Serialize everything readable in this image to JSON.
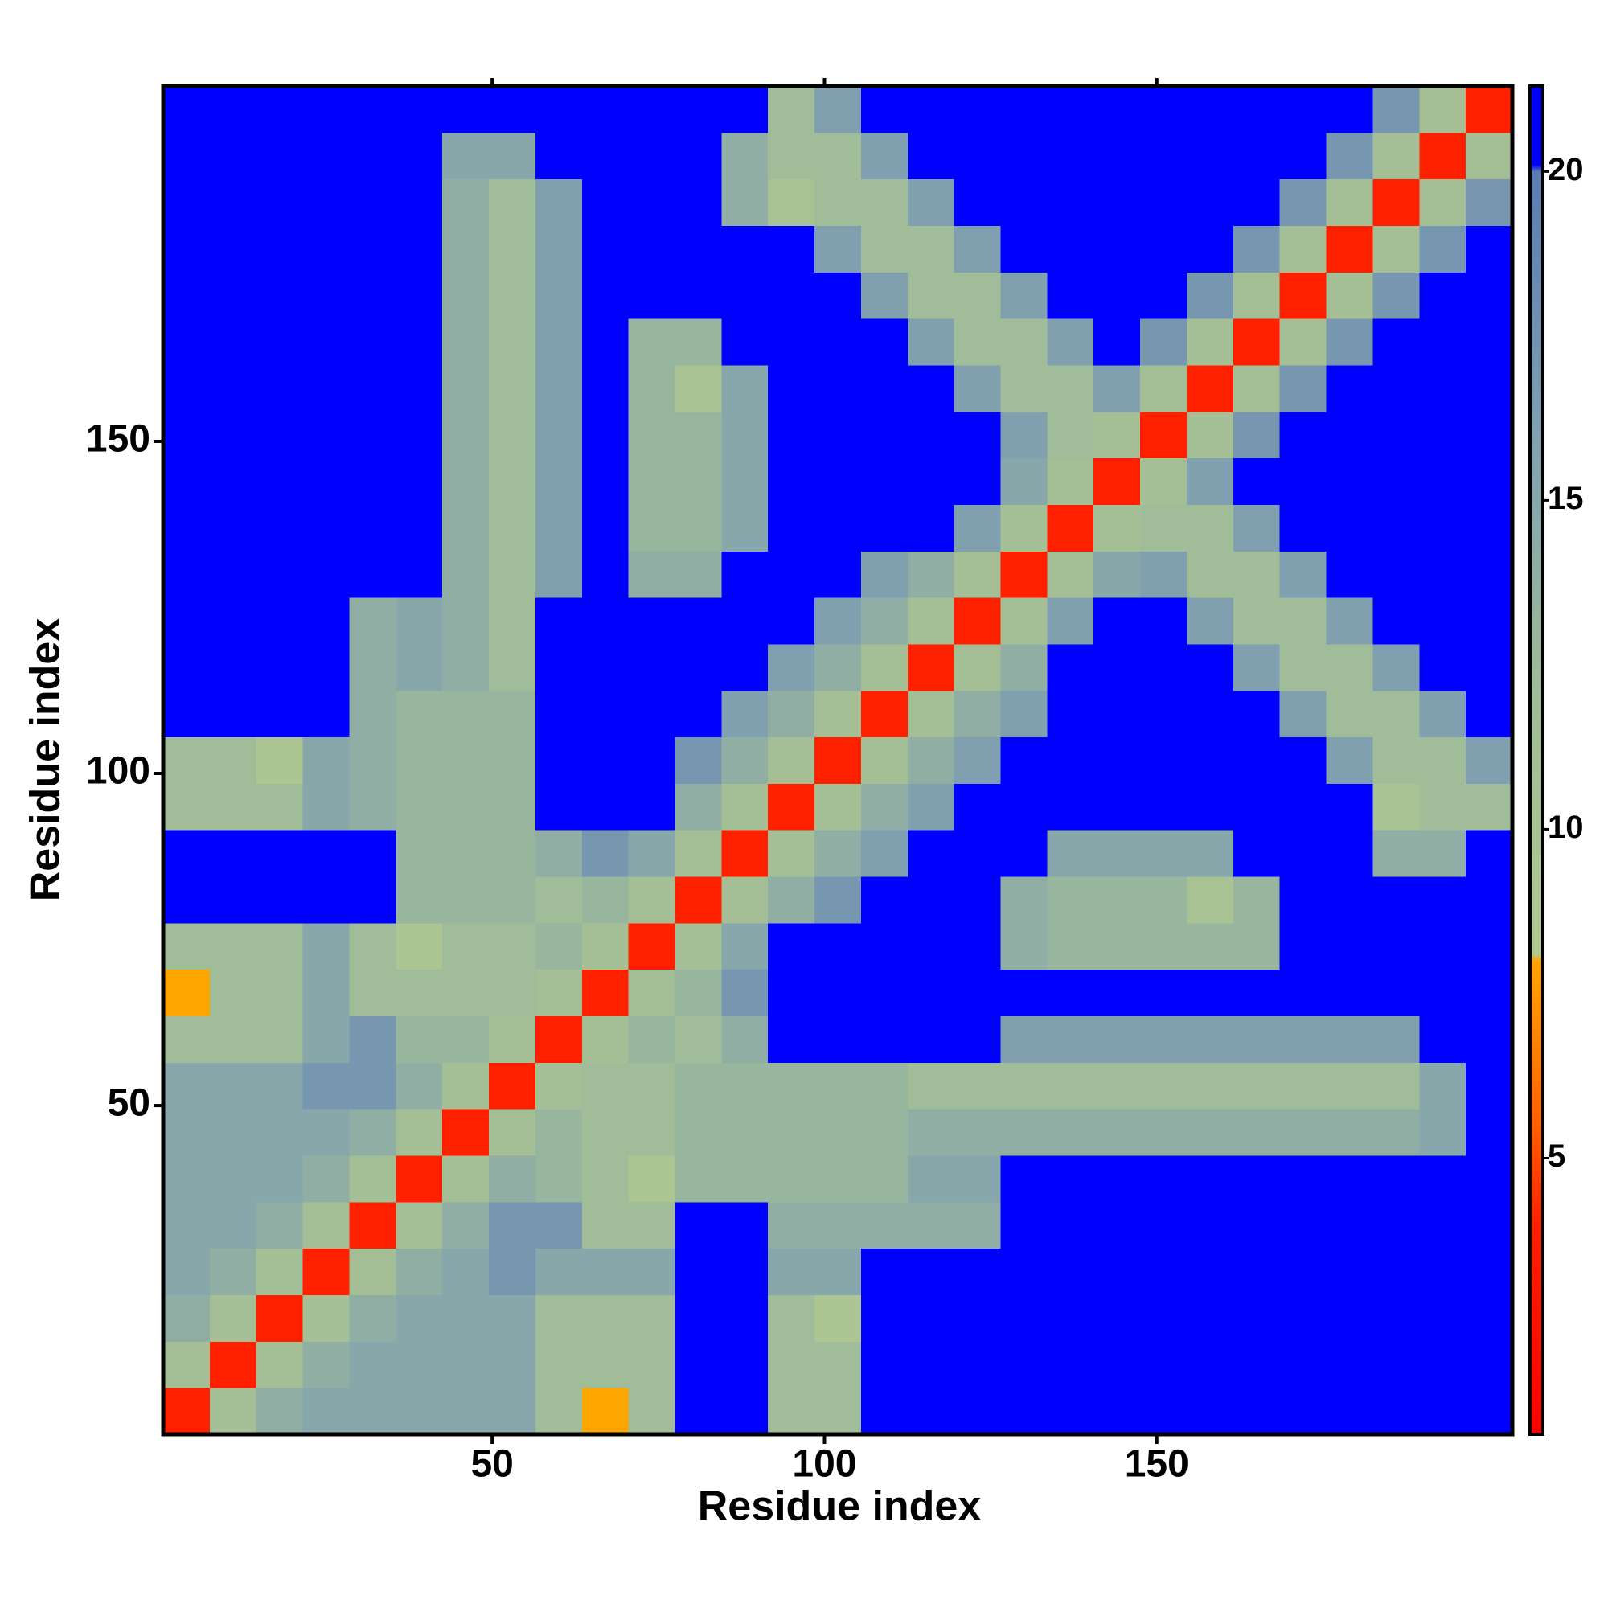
{
  "chart_data": {
    "type": "heatmap",
    "x_label": "Residue index",
    "y_label": "Residue index",
    "xlim": [
      0.5,
      203.5
    ],
    "ylim": [
      0.5,
      203.5
    ],
    "xticks": [
      50,
      100,
      150
    ],
    "yticks": [
      50,
      100,
      150
    ],
    "symmetric": true,
    "bins": [
      0.5,
      7.5,
      14.5,
      21.5,
      28.5,
      35.5,
      42.5,
      49.5,
      56.5,
      63.5,
      70.5,
      77.5,
      84.5,
      91.5,
      98.5,
      105.5,
      112.5,
      119.5,
      126.5,
      133.5,
      140.5,
      147.5,
      154.5,
      161.5,
      168.5,
      175.5,
      182.5,
      189.5,
      196.5,
      203.5
    ],
    "z_lower": [
      [
        4
      ],
      [
        11,
        4
      ],
      [
        14,
        11,
        4
      ],
      [
        15,
        14,
        11,
        4
      ],
      [
        15,
        15,
        14,
        11,
        4
      ],
      [
        15,
        15,
        15,
        14,
        11,
        4
      ],
      [
        15,
        15,
        15,
        15,
        14,
        11,
        4
      ],
      [
        15,
        15,
        15,
        17,
        17,
        14,
        11,
        4
      ],
      [
        12,
        12,
        12,
        15,
        17,
        13,
        13,
        11,
        4
      ],
      [
        8,
        12,
        12,
        15,
        12,
        12,
        12,
        12,
        11,
        4
      ],
      [
        12,
        12,
        12,
        15,
        12,
        9,
        12,
        12,
        13,
        11,
        4
      ],
      [
        21,
        21,
        21,
        21,
        21,
        13,
        13,
        13,
        12,
        13,
        11,
        4
      ],
      [
        21,
        21,
        21,
        21,
        21,
        13,
        13,
        13,
        14,
        17,
        15,
        11,
        4
      ],
      [
        12,
        12,
        12,
        15,
        14,
        13,
        13,
        13,
        21,
        21,
        21,
        14,
        11,
        4
      ],
      [
        12,
        12,
        9,
        15,
        14,
        13,
        13,
        13,
        21,
        21,
        21,
        17,
        14,
        11,
        4
      ],
      [
        21,
        21,
        21,
        21,
        14,
        13,
        13,
        13,
        21,
        21,
        21,
        21,
        16,
        14,
        11,
        4
      ],
      [
        21,
        21,
        21,
        21,
        14,
        15,
        14,
        12,
        21,
        21,
        21,
        21,
        21,
        16,
        14,
        11,
        4
      ],
      [
        21,
        21,
        21,
        21,
        14,
        15,
        14,
        12,
        21,
        21,
        21,
        21,
        21,
        21,
        16,
        14,
        11,
        4
      ],
      [
        21,
        21,
        21,
        21,
        21,
        21,
        14,
        12,
        16,
        21,
        14,
        14,
        21,
        21,
        21,
        16,
        14,
        11,
        4
      ],
      [
        21,
        21,
        21,
        21,
        21,
        21,
        14,
        12,
        16,
        21,
        13,
        13,
        15,
        21,
        21,
        21,
        21,
        16,
        11,
        4
      ],
      [
        21,
        21,
        21,
        21,
        21,
        21,
        14,
        12,
        16,
        21,
        13,
        13,
        15,
        21,
        21,
        21,
        21,
        21,
        15,
        11,
        4
      ],
      [
        21,
        21,
        21,
        21,
        21,
        21,
        14,
        12,
        16,
        21,
        13,
        13,
        15,
        21,
        21,
        21,
        21,
        21,
        16,
        12,
        11,
        4
      ],
      [
        21,
        21,
        21,
        21,
        21,
        21,
        14,
        12,
        16,
        21,
        13,
        10,
        15,
        21,
        21,
        21,
        21,
        16,
        12,
        12,
        16,
        11,
        4
      ],
      [
        21,
        21,
        21,
        21,
        21,
        21,
        14,
        12,
        16,
        21,
        13,
        13,
        21,
        21,
        21,
        21,
        16,
        12,
        12,
        16,
        21,
        17,
        11,
        4
      ],
      [
        21,
        21,
        21,
        21,
        21,
        21,
        14,
        12,
        16,
        21,
        21,
        21,
        21,
        21,
        21,
        16,
        12,
        12,
        16,
        21,
        21,
        21,
        17,
        11,
        4
      ],
      [
        21,
        21,
        21,
        21,
        21,
        21,
        14,
        12,
        16,
        21,
        21,
        21,
        21,
        21,
        16,
        12,
        12,
        16,
        21,
        21,
        21,
        21,
        21,
        17,
        11,
        4
      ],
      [
        21,
        21,
        21,
        21,
        21,
        21,
        14,
        12,
        16,
        21,
        21,
        21,
        14,
        10,
        12,
        12,
        16,
        21,
        21,
        21,
        21,
        21,
        21,
        21,
        17,
        11,
        4
      ],
      [
        21,
        21,
        21,
        21,
        21,
        21,
        15,
        15,
        21,
        21,
        21,
        21,
        14,
        12,
        12,
        16,
        21,
        21,
        21,
        21,
        21,
        21,
        21,
        21,
        21,
        17,
        11,
        4
      ],
      [
        21,
        21,
        21,
        21,
        21,
        21,
        21,
        21,
        21,
        21,
        21,
        21,
        21,
        12,
        16,
        21,
        21,
        21,
        21,
        21,
        21,
        21,
        21,
        21,
        21,
        21,
        17,
        11,
        4
      ]
    ],
    "colorscale": [
      [
        0.8,
        "#ff0000"
      ],
      [
        4,
        "#ff2000"
      ],
      [
        5.5,
        "#ff6000"
      ],
      [
        8,
        "#ffa500"
      ],
      [
        8.1,
        "#b0c890"
      ],
      [
        12,
        "#a0bc98"
      ],
      [
        16,
        "#80a0b0"
      ],
      [
        20,
        "#5a7cb0"
      ],
      [
        20.1,
        "#0000ff"
      ],
      [
        21.3,
        "#0000ff"
      ]
    ],
    "colorbar_lim": [
      0.8,
      21.3
    ],
    "colorbar_ticks": [
      5,
      10,
      15,
      20
    ]
  }
}
